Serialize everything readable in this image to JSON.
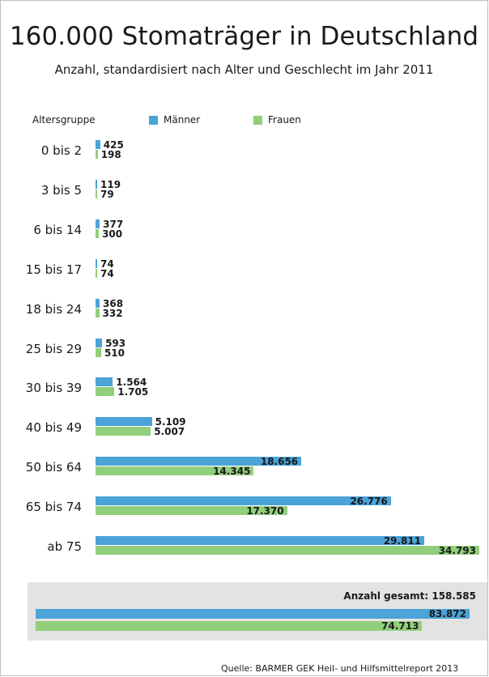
{
  "title": "160.000 Stomaträger in Deutschland",
  "subtitle": "Anzahl, standardisiert nach Alter und Geschlecht im Jahr 2011",
  "legend": {
    "category_label": "Altersgruppe",
    "men": "Männer",
    "women": "Frauen"
  },
  "colors": {
    "men": "#4ba3d8",
    "women": "#92cf7c"
  },
  "total": {
    "label": "Anzahl gesamt: 158.585",
    "men": 83872,
    "women": 74713,
    "men_label": "83.872",
    "women_label": "74.713"
  },
  "source": "Quelle: BARMER GEK Heil- und Hilfsmittelreport 2013",
  "chart_data": {
    "type": "bar",
    "orientation": "horizontal",
    "title": "160.000 Stomaträger in Deutschland",
    "subtitle": "Anzahl, standardisiert nach Alter und Geschlecht im Jahr 2011",
    "categories": [
      "0 bis 2",
      "3 bis 5",
      "6 bis 14",
      "15 bis 17",
      "18 bis 24",
      "25 bis 29",
      "30 bis 39",
      "40 bis 49",
      "50 bis 64",
      "65 bis 74",
      "ab 75"
    ],
    "series": [
      {
        "name": "Männer",
        "values": [
          425,
          119,
          377,
          74,
          368,
          593,
          1564,
          5109,
          18656,
          26776,
          29811
        ],
        "labels": [
          "425",
          "119",
          "377",
          "74",
          "368",
          "593",
          "1.564",
          "5.109",
          "18.656",
          "26.776",
          "29.811"
        ]
      },
      {
        "name": "Frauen",
        "values": [
          198,
          79,
          300,
          74,
          332,
          510,
          1705,
          5007,
          14345,
          17370,
          34793
        ],
        "labels": [
          "198",
          "79",
          "300",
          "74",
          "332",
          "510",
          "1.705",
          "5.007",
          "14.345",
          "17.370",
          "34.793"
        ]
      }
    ],
    "legend_position": "top",
    "grid": false
  }
}
